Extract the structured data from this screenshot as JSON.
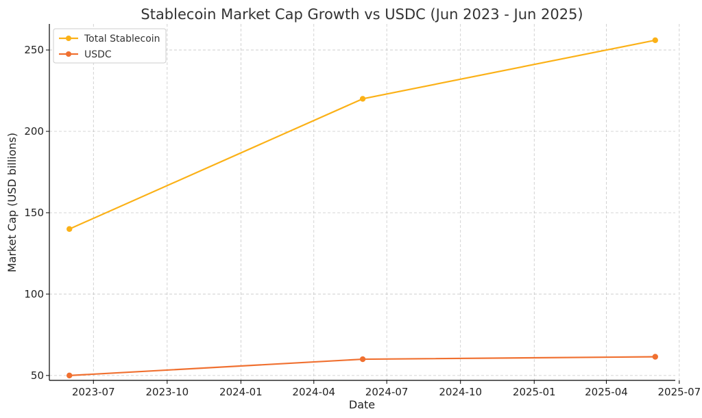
{
  "chart_data": {
    "type": "line",
    "title": "Stablecoin Market Cap Growth vs USDC (Jun 2023 - Jun 2025)",
    "xlabel": "Date",
    "ylabel": "Market Cap (USD billions)",
    "x": [
      "2023-06-01",
      "2024-06-01",
      "2025-06-01"
    ],
    "series": [
      {
        "name": "Total Stablecoin",
        "color": "#fbb117",
        "values": [
          140,
          220,
          256
        ]
      },
      {
        "name": "USDC",
        "color": "#f07030",
        "values": [
          50,
          60,
          61.5
        ]
      }
    ],
    "xlim": [
      "2023-05-07",
      "2025-06-26"
    ],
    "ylim": [
      47,
      266
    ],
    "x_ticks": [
      "2023-07",
      "2023-10",
      "2024-01",
      "2024-04",
      "2024-07",
      "2024-10",
      "2025-01",
      "2025-04",
      "2025-07"
    ],
    "y_ticks": [
      50,
      100,
      150,
      200,
      250
    ],
    "grid": true,
    "legend": "top-left"
  }
}
